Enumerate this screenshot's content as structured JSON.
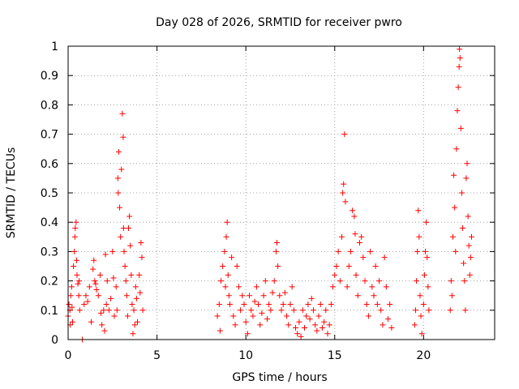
{
  "chart_data": {
    "type": "scatter",
    "title": "Day 028 of 2026, SRMTID for receiver pwro",
    "xlabel": "GPS time / hours",
    "ylabel": "SRMTID / TECUs",
    "xlim": [
      0,
      24
    ],
    "ylim": [
      0,
      1
    ],
    "grid": true,
    "marker": "+",
    "colors": {
      "points": "#ff0000",
      "grid": "#a0a0a0",
      "axes": "#000000"
    },
    "x_ticks": [
      0,
      5,
      10,
      15,
      20
    ],
    "x_tick_labels": [
      "0",
      "5",
      "10",
      "15",
      "20"
    ],
    "y_ticks": [
      0,
      0.1,
      0.2,
      0.3,
      0.4,
      0.5,
      0.6,
      0.7,
      0.8,
      0.9,
      1
    ],
    "y_tick_labels": [
      "0",
      "0.1",
      "0.2",
      "0.3",
      "0.4",
      "0.5",
      "0.6",
      "0.7",
      "0.8",
      "0.9",
      "1"
    ],
    "series": [
      {
        "name": "SRMTID",
        "points": [
          [
            0.0,
            0.08
          ],
          [
            0.05,
            0.12
          ],
          [
            0.1,
            0.1
          ],
          [
            0.12,
            0.05
          ],
          [
            0.15,
            0.15
          ],
          [
            0.2,
            0.18
          ],
          [
            0.22,
            0.11
          ],
          [
            0.25,
            0.06
          ],
          [
            0.3,
            0.25
          ],
          [
            0.35,
            0.3
          ],
          [
            0.38,
            0.35
          ],
          [
            0.4,
            0.38
          ],
          [
            0.45,
            0.4
          ],
          [
            0.48,
            0.27
          ],
          [
            0.5,
            0.22
          ],
          [
            0.55,
            0.19
          ],
          [
            0.6,
            0.15
          ],
          [
            0.62,
            0.2
          ],
          [
            0.65,
            0.1
          ],
          [
            0.8,
            0.0
          ],
          [
            0.9,
            0.12
          ],
          [
            1.0,
            0.15
          ],
          [
            1.1,
            0.13
          ],
          [
            1.2,
            0.18
          ],
          [
            1.3,
            0.06
          ],
          [
            1.4,
            0.24
          ],
          [
            1.45,
            0.27
          ],
          [
            1.5,
            0.2
          ],
          [
            1.55,
            0.19
          ],
          [
            1.6,
            0.17
          ],
          [
            1.7,
            0.15
          ],
          [
            1.8,
            0.22
          ],
          [
            1.85,
            0.09
          ],
          [
            1.9,
            0.05
          ],
          [
            2.0,
            0.1
          ],
          [
            2.05,
            0.03
          ],
          [
            2.1,
            0.29
          ],
          [
            2.15,
            0.12
          ],
          [
            2.2,
            0.2
          ],
          [
            2.3,
            0.1
          ],
          [
            2.4,
            0.14
          ],
          [
            2.5,
            0.3
          ],
          [
            2.55,
            0.21
          ],
          [
            2.6,
            0.08
          ],
          [
            2.7,
            0.18
          ],
          [
            2.75,
            0.1
          ],
          [
            2.8,
            0.55
          ],
          [
            2.82,
            0.5
          ],
          [
            2.85,
            0.64
          ],
          [
            2.9,
            0.45
          ],
          [
            2.95,
            0.35
          ],
          [
            3.0,
            0.58
          ],
          [
            3.05,
            0.77
          ],
          [
            3.1,
            0.69
          ],
          [
            3.12,
            0.38
          ],
          [
            3.15,
            0.3
          ],
          [
            3.2,
            0.25
          ],
          [
            3.25,
            0.2
          ],
          [
            3.3,
            0.15
          ],
          [
            3.35,
            0.08
          ],
          [
            3.4,
            0.38
          ],
          [
            3.45,
            0.42
          ],
          [
            3.5,
            0.32
          ],
          [
            3.55,
            0.22
          ],
          [
            3.6,
            0.12
          ],
          [
            3.65,
            0.02
          ],
          [
            3.7,
            0.1
          ],
          [
            3.75,
            0.05
          ],
          [
            3.8,
            0.18
          ],
          [
            3.85,
            0.14
          ],
          [
            3.9,
            0.06
          ],
          [
            4.0,
            0.22
          ],
          [
            4.05,
            0.16
          ],
          [
            4.1,
            0.33
          ],
          [
            4.15,
            0.28
          ],
          [
            4.2,
            0.1
          ],
          [
            8.4,
            0.08
          ],
          [
            8.5,
            0.12
          ],
          [
            8.55,
            0.03
          ],
          [
            8.6,
            0.2
          ],
          [
            8.7,
            0.25
          ],
          [
            8.8,
            0.3
          ],
          [
            8.85,
            0.18
          ],
          [
            8.9,
            0.35
          ],
          [
            8.95,
            0.4
          ],
          [
            9.0,
            0.22
          ],
          [
            9.05,
            0.15
          ],
          [
            9.1,
            0.12
          ],
          [
            9.2,
            0.28
          ],
          [
            9.3,
            0.08
          ],
          [
            9.4,
            0.05
          ],
          [
            9.5,
            0.25
          ],
          [
            9.6,
            0.18
          ],
          [
            9.7,
            0.1
          ],
          [
            9.8,
            0.15
          ],
          [
            9.9,
            0.12
          ],
          [
            10.0,
            0.06
          ],
          [
            10.1,
            0.02
          ],
          [
            10.2,
            0.15
          ],
          [
            10.3,
            0.1
          ],
          [
            10.4,
            0.08
          ],
          [
            10.5,
            0.13
          ],
          [
            10.6,
            0.18
          ],
          [
            10.7,
            0.12
          ],
          [
            10.8,
            0.05
          ],
          [
            10.9,
            0.09
          ],
          [
            11.0,
            0.15
          ],
          [
            11.1,
            0.2
          ],
          [
            11.2,
            0.07
          ],
          [
            11.3,
            0.12
          ],
          [
            11.4,
            0.1
          ],
          [
            11.5,
            0.16
          ],
          [
            11.6,
            0.2
          ],
          [
            11.7,
            0.3
          ],
          [
            11.75,
            0.33
          ],
          [
            11.8,
            0.25
          ],
          [
            11.9,
            0.15
          ],
          [
            12.0,
            0.1
          ],
          [
            12.1,
            0.12
          ],
          [
            12.2,
            0.16
          ],
          [
            12.3,
            0.08
          ],
          [
            12.4,
            0.05
          ],
          [
            12.5,
            0.12
          ],
          [
            12.6,
            0.18
          ],
          [
            12.7,
            0.1
          ],
          [
            12.8,
            0.04
          ],
          [
            12.9,
            0.02
          ],
          [
            13.0,
            0.06
          ],
          [
            13.1,
            0.01
          ],
          [
            13.2,
            0.1
          ],
          [
            13.3,
            0.04
          ],
          [
            13.4,
            0.08
          ],
          [
            13.5,
            0.12
          ],
          [
            13.6,
            0.07
          ],
          [
            13.7,
            0.14
          ],
          [
            13.8,
            0.1
          ],
          [
            13.9,
            0.05
          ],
          [
            14.0,
            0.03
          ],
          [
            14.1,
            0.08
          ],
          [
            14.2,
            0.12
          ],
          [
            14.3,
            0.04
          ],
          [
            14.4,
            0.06
          ],
          [
            14.5,
            0.1
          ],
          [
            14.6,
            0.02
          ],
          [
            14.7,
            0.05
          ],
          [
            14.8,
            0.12
          ],
          [
            14.9,
            0.18
          ],
          [
            15.0,
            0.22
          ],
          [
            15.1,
            0.25
          ],
          [
            15.2,
            0.3
          ],
          [
            15.3,
            0.2
          ],
          [
            15.4,
            0.35
          ],
          [
            15.45,
            0.5
          ],
          [
            15.5,
            0.53
          ],
          [
            15.55,
            0.7
          ],
          [
            15.6,
            0.47
          ],
          [
            15.7,
            0.18
          ],
          [
            15.8,
            0.25
          ],
          [
            15.9,
            0.3
          ],
          [
            16.0,
            0.44
          ],
          [
            16.1,
            0.42
          ],
          [
            16.15,
            0.36
          ],
          [
            16.2,
            0.22
          ],
          [
            16.3,
            0.15
          ],
          [
            16.4,
            0.33
          ],
          [
            16.5,
            0.35
          ],
          [
            16.6,
            0.28
          ],
          [
            16.7,
            0.2
          ],
          [
            16.8,
            0.12
          ],
          [
            16.9,
            0.08
          ],
          [
            17.0,
            0.3
          ],
          [
            17.1,
            0.18
          ],
          [
            17.2,
            0.15
          ],
          [
            17.3,
            0.25
          ],
          [
            17.4,
            0.12
          ],
          [
            17.5,
            0.2
          ],
          [
            17.6,
            0.1
          ],
          [
            17.7,
            0.05
          ],
          [
            17.8,
            0.28
          ],
          [
            17.9,
            0.18
          ],
          [
            18.0,
            0.07
          ],
          [
            18.1,
            0.12
          ],
          [
            18.2,
            0.04
          ],
          [
            19.5,
            0.05
          ],
          [
            19.55,
            0.1
          ],
          [
            19.6,
            0.2
          ],
          [
            19.65,
            0.3
          ],
          [
            19.7,
            0.44
          ],
          [
            19.75,
            0.35
          ],
          [
            19.8,
            0.15
          ],
          [
            19.85,
            0.08
          ],
          [
            19.9,
            0.02
          ],
          [
            20.0,
            0.12
          ],
          [
            20.05,
            0.22
          ],
          [
            20.1,
            0.3
          ],
          [
            20.15,
            0.4
          ],
          [
            20.2,
            0.28
          ],
          [
            20.25,
            0.18
          ],
          [
            20.3,
            0.1
          ],
          [
            21.5,
            0.1
          ],
          [
            21.55,
            0.2
          ],
          [
            21.6,
            0.15
          ],
          [
            21.65,
            0.35
          ],
          [
            21.7,
            0.56
          ],
          [
            21.75,
            0.45
          ],
          [
            21.8,
            0.3
          ],
          [
            21.85,
            0.65
          ],
          [
            21.9,
            0.78
          ],
          [
            21.95,
            0.86
          ],
          [
            22.0,
            0.93
          ],
          [
            22.02,
            0.99
          ],
          [
            22.05,
            0.96
          ],
          [
            22.1,
            0.72
          ],
          [
            22.15,
            0.5
          ],
          [
            22.2,
            0.38
          ],
          [
            22.25,
            0.26
          ],
          [
            22.3,
            0.2
          ],
          [
            22.35,
            0.1
          ],
          [
            22.4,
            0.55
          ],
          [
            22.45,
            0.6
          ],
          [
            22.5,
            0.42
          ],
          [
            22.55,
            0.32
          ],
          [
            22.6,
            0.22
          ],
          [
            22.65,
            0.28
          ],
          [
            22.7,
            0.35
          ]
        ]
      }
    ]
  }
}
